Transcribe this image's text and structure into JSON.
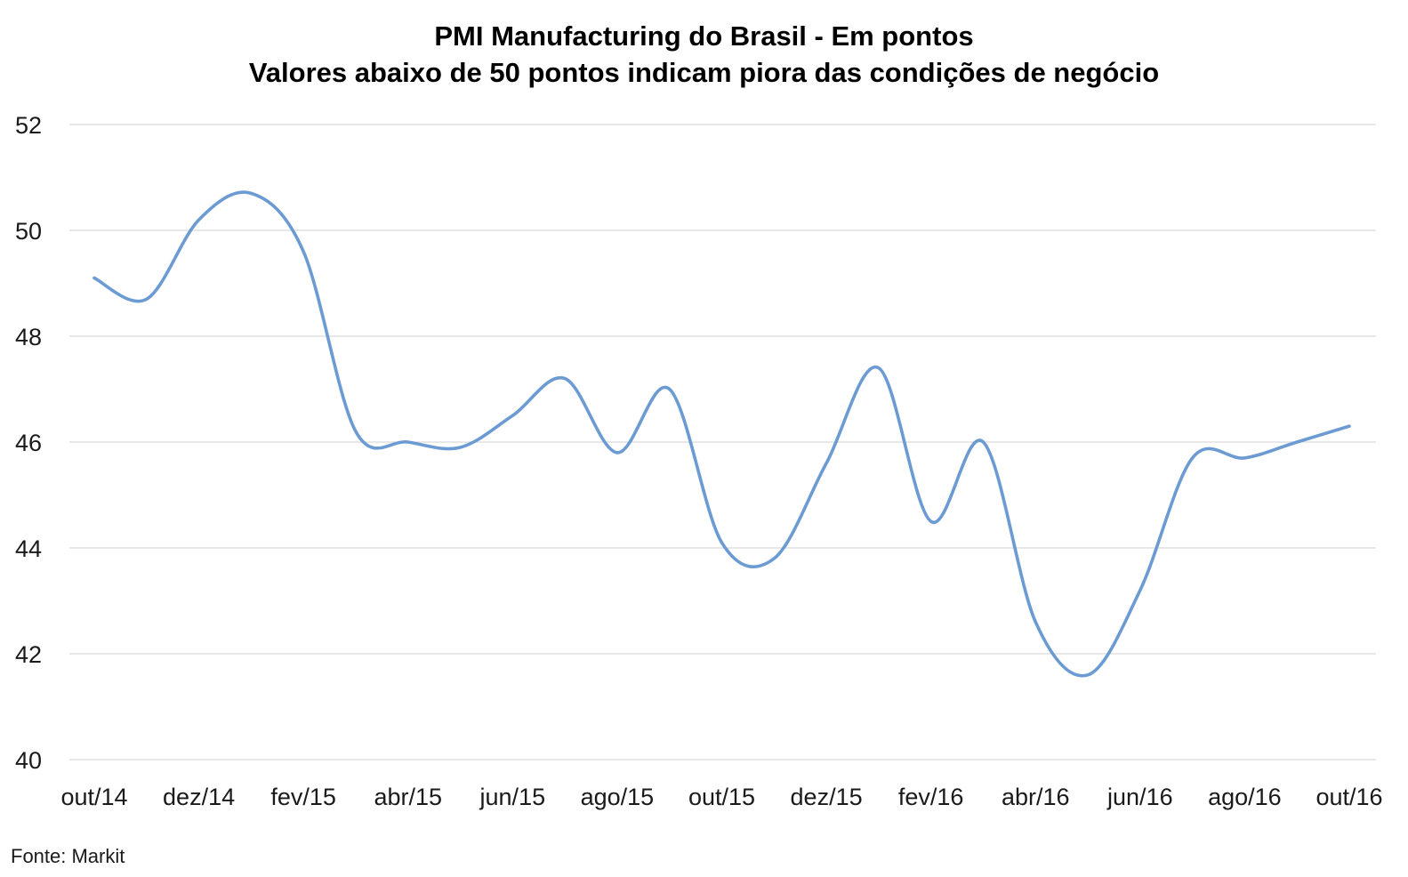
{
  "chart_data": {
    "type": "line",
    "title": "PMI Manufacturing do Brasil - Em pontos",
    "subtitle": "Valores abaixo de 50 pontos indicam piora das condições de negócio",
    "xlabel": "",
    "ylabel": "",
    "ylim": [
      40,
      52
    ],
    "yticks": [
      "40",
      "42",
      "44",
      "46",
      "48",
      "50",
      "52"
    ],
    "x": [
      "out/14",
      "nov/14",
      "dez/14",
      "jan/15",
      "fev/15",
      "mar/15",
      "abr/15",
      "mai/15",
      "jun/15",
      "jul/15",
      "ago/15",
      "set/15",
      "out/15",
      "nov/15",
      "dez/15",
      "jan/16",
      "fev/16",
      "mar/16",
      "abr/16",
      "mai/16",
      "jun/16",
      "jul/16",
      "ago/16",
      "set/16",
      "out/16"
    ],
    "xtick_labels": [
      "out/14",
      "dez/14",
      "fev/15",
      "abr/15",
      "jun/15",
      "ago/15",
      "out/15",
      "dez/15",
      "fev/16",
      "abr/16",
      "jun/16",
      "ago/16",
      "out/16"
    ],
    "xtick_every": 2,
    "series": [
      {
        "color": "#6b9bd2",
        "values": [
          49.1,
          48.7,
          50.2,
          50.7,
          49.6,
          46.2,
          46.0,
          45.9,
          46.5,
          47.2,
          45.8,
          47.0,
          44.1,
          43.8,
          45.6,
          47.4,
          44.5,
          46.0,
          42.6,
          41.6,
          43.2,
          45.7,
          45.7,
          46.0,
          46.3
        ]
      }
    ],
    "grid": true,
    "legend": "none",
    "source": "Fonte: Markit"
  }
}
